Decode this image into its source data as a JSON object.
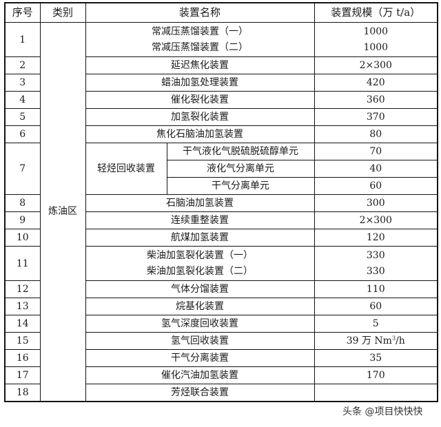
{
  "headers": [
    "序号",
    "类别",
    "装置名称",
    "装置规模（万 t/a）"
  ],
  "category": "炼油区",
  "rows": [
    {
      "no": "1",
      "names": [
        "常减压蒸馏装置（一）",
        "常减压蒸馏装置（二）"
      ],
      "values": [
        "1000",
        "1000"
      ]
    },
    {
      "no": "2",
      "name": "延迟焦化装置",
      "value": "2×300"
    },
    {
      "no": "3",
      "name": "蜡油加氢处理装置",
      "value": "420"
    },
    {
      "no": "4",
      "name": "催化裂化装置",
      "value": "360"
    },
    {
      "no": "5",
      "name": "加氢裂化装置",
      "value": "370"
    },
    {
      "no": "6",
      "name": "焦化石脑油加氢装置",
      "value": "80"
    },
    {
      "no": "7",
      "group": "轻烃回收装置",
      "units": [
        {
          "name": "干气液化气脱硫脱硫醇单元",
          "value": "70"
        },
        {
          "name": "液化气分离单元",
          "value": "40"
        },
        {
          "name": "干气分离单元",
          "value": "60"
        }
      ]
    },
    {
      "no": "8",
      "name": "石脑油加氢装置",
      "value": "300"
    },
    {
      "no": "9",
      "name": "连续重整装置",
      "value": "2×300"
    },
    {
      "no": "10",
      "name": "航煤加氢装置",
      "value": "120"
    },
    {
      "no": "11",
      "names": [
        "柴油加氢裂化装置（一）",
        "柴油加氢裂化装置（二）"
      ],
      "values": [
        "330",
        "330"
      ]
    },
    {
      "no": "12",
      "name": "气体分馏装置",
      "value": "110"
    },
    {
      "no": "13",
      "name": "烷基化装置",
      "value": "60"
    },
    {
      "no": "14",
      "name": "氢气深度回收装置",
      "value": "5"
    },
    {
      "no": "15",
      "name": "氢气回收装置",
      "value_prefix": "39 万 Nm",
      "value_sup": "3",
      "value_suffix": "/h"
    },
    {
      "no": "16",
      "name": "干气分离装置",
      "value": "35"
    },
    {
      "no": "17",
      "name": "催化汽油加氢装置",
      "value": "170"
    },
    {
      "no": "18",
      "name": "芳烃联合装置",
      "value": ""
    }
  ],
  "watermark": "头条 @项目快快快"
}
